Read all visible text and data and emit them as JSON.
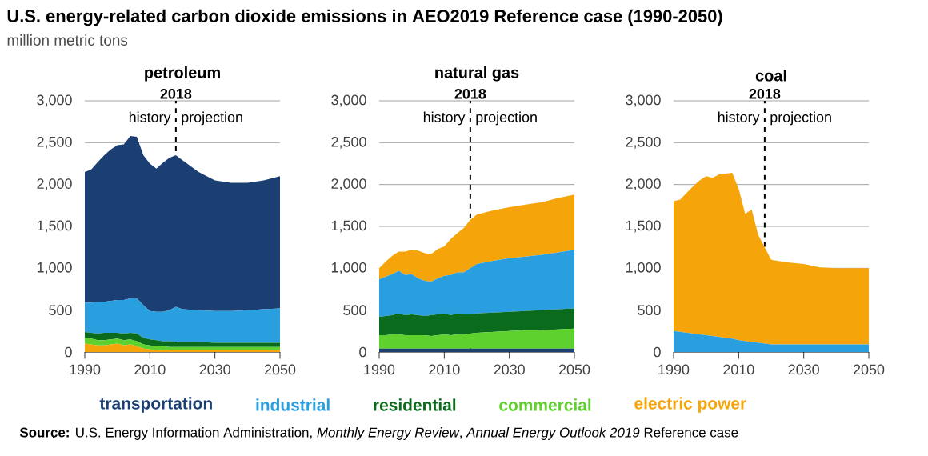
{
  "chart_data": [
    {
      "type": "area",
      "stacked": true,
      "title": "U.S. energy-related carbon dioxide emissions in AEO2019 Reference case (1990-2050)",
      "subtitle": "million metric tons",
      "xlabel": "petroleum",
      "legend": "bottom",
      "grid": "y",
      "x": [
        1990,
        1992,
        1994,
        1996,
        1998,
        2000,
        2002,
        2004,
        2006,
        2008,
        2010,
        2012,
        2014,
        2016,
        2018,
        2020,
        2025,
        2030,
        2035,
        2040,
        2045,
        2050
      ],
      "xlim": [
        1990,
        2050
      ],
      "xticks": [
        1990,
        2010,
        2030,
        2050
      ],
      "ylim": [
        0,
        3000
      ],
      "yticks": [
        0,
        500,
        {
          "value": 1000,
          "label": "1,000"
        },
        {
          "value": 1500,
          "label": "1,500"
        },
        {
          "value": 2000,
          "label": "2,000"
        },
        {
          "value": 2500,
          "label": "2,500"
        },
        {
          "value": 3000,
          "label": "3,000"
        }
      ],
      "ref_lines": [
        {
          "axis": "x",
          "value": 2018,
          "label": "2018",
          "color": "#000000",
          "line_style": "dashed"
        }
      ],
      "annotations": [
        "history",
        "projection",
        "**Source:** U.S. Energy Information Administration, *Monthly Energy Review*, *Annual Energy Outlook 2019* Reference case"
      ],
      "series": [
        {
          "name": "electric power",
          "color": "#f5a50a",
          "values": [
            100,
            90,
            80,
            80,
            90,
            100,
            80,
            90,
            70,
            40,
            30,
            20,
            20,
            20,
            20,
            20,
            20,
            20,
            20,
            20,
            20,
            20
          ]
        },
        {
          "name": "commercial",
          "color": "#5fd12e",
          "values": [
            70,
            70,
            60,
            60,
            60,
            60,
            60,
            60,
            60,
            50,
            50,
            50,
            50,
            40,
            40,
            40,
            40,
            40,
            40,
            40,
            40,
            40
          ]
        },
        {
          "name": "residential",
          "color": "#0b6b1d",
          "values": [
            70,
            70,
            80,
            90,
            80,
            70,
            80,
            80,
            90,
            80,
            70,
            70,
            60,
            70,
            60,
            60,
            60,
            50,
            50,
            50,
            50,
            50
          ]
        },
        {
          "name": "industrial",
          "color": "#2a9fe0",
          "values": [
            350,
            360,
            380,
            370,
            380,
            390,
            400,
            410,
            420,
            390,
            340,
            340,
            350,
            370,
            420,
            390,
            380,
            380,
            380,
            390,
            400,
            410
          ]
        },
        {
          "name": "transportation",
          "color": "#1b3f73",
          "values": [
            1560,
            1590,
            1670,
            1750,
            1810,
            1850,
            1860,
            1940,
            1930,
            1790,
            1760,
            1710,
            1780,
            1820,
            1810,
            1780,
            1650,
            1560,
            1530,
            1520,
            1540,
            1580
          ]
        }
      ]
    },
    {
      "type": "area",
      "stacked": true,
      "xlabel": "natural gas",
      "grid": "y",
      "x": [
        1990,
        1992,
        1994,
        1996,
        1998,
        2000,
        2002,
        2004,
        2006,
        2008,
        2010,
        2012,
        2014,
        2016,
        2018,
        2020,
        2025,
        2030,
        2035,
        2040,
        2045,
        2050
      ],
      "xlim": [
        1990,
        2050
      ],
      "xticks": [
        1990,
        2010,
        2030,
        2050
      ],
      "ylim": [
        0,
        3000
      ],
      "yticks": [
        0,
        500,
        {
          "value": 1000,
          "label": "1,000"
        },
        {
          "value": 1500,
          "label": "1,500"
        },
        {
          "value": 2000,
          "label": "2,000"
        },
        {
          "value": 2500,
          "label": "2,500"
        },
        {
          "value": 3000,
          "label": "3,000"
        }
      ],
      "ref_lines": [
        {
          "axis": "x",
          "value": 2018,
          "label": "2018",
          "color": "#000000",
          "line_style": "dashed"
        }
      ],
      "annotations": [
        "history",
        "projection"
      ],
      "series": [
        {
          "color": "#1b3f73",
          "values": [
            40,
            40,
            40,
            40,
            40,
            40,
            40,
            40,
            40,
            40,
            40,
            40,
            40,
            40,
            40,
            40,
            40,
            40,
            40,
            40,
            40,
            40
          ]
        },
        {
          "color": "#5fd12e",
          "values": [
            160,
            160,
            170,
            170,
            160,
            160,
            160,
            160,
            150,
            160,
            170,
            160,
            170,
            170,
            180,
            190,
            200,
            210,
            220,
            220,
            230,
            240
          ]
        },
        {
          "color": "#0b6b1d",
          "values": [
            220,
            230,
            230,
            250,
            240,
            250,
            240,
            230,
            250,
            250,
            250,
            240,
            250,
            240,
            230,
            230,
            230,
            230,
            230,
            240,
            240,
            240
          ]
        },
        {
          "color": "#2a9fe0",
          "values": [
            450,
            470,
            490,
            510,
            480,
            480,
            440,
            420,
            400,
            430,
            450,
            480,
            490,
            500,
            550,
            590,
            620,
            640,
            650,
            660,
            680,
            700
          ]
        },
        {
          "color": "#f5a50a",
          "values": [
            130,
            180,
            220,
            230,
            280,
            290,
            330,
            330,
            330,
            350,
            350,
            430,
            470,
            530,
            580,
            590,
            600,
            610,
            620,
            630,
            650,
            660
          ]
        }
      ]
    },
    {
      "type": "area",
      "stacked": true,
      "xlabel": "coal",
      "grid": "y",
      "x": [
        1990,
        1992,
        1994,
        1996,
        1998,
        2000,
        2002,
        2004,
        2006,
        2008,
        2010,
        2012,
        2014,
        2016,
        2018,
        2020,
        2025,
        2030,
        2035,
        2040,
        2045,
        2050
      ],
      "xlim": [
        1990,
        2050
      ],
      "xticks": [
        1990,
        2010,
        2030,
        2050
      ],
      "ylim": [
        0,
        3000
      ],
      "yticks": [
        0,
        500,
        {
          "value": 1000,
          "label": "1,000"
        },
        {
          "value": 1500,
          "label": "1,500"
        },
        {
          "value": 2000,
          "label": "2,000"
        },
        {
          "value": 2500,
          "label": "2,500"
        },
        {
          "value": 3000,
          "label": "3,000"
        }
      ],
      "ref_lines": [
        {
          "axis": "x",
          "value": 2018,
          "label": "2018",
          "color": "#000000",
          "line_style": "dashed"
        }
      ],
      "annotations": [
        "history",
        "projection"
      ],
      "series": [
        {
          "color": "#2a9fe0",
          "values": [
            250,
            240,
            230,
            220,
            210,
            200,
            190,
            180,
            170,
            160,
            140,
            130,
            120,
            110,
            100,
            90,
            90,
            90,
            90,
            90,
            90,
            90
          ]
        },
        {
          "color": "#f5a50a",
          "values": [
            1550,
            1580,
            1670,
            1760,
            1840,
            1900,
            1890,
            1940,
            1960,
            1980,
            1810,
            1520,
            1580,
            1290,
            1150,
            1010,
            980,
            960,
            920,
            910,
            910,
            910
          ]
        }
      ]
    }
  ]
}
